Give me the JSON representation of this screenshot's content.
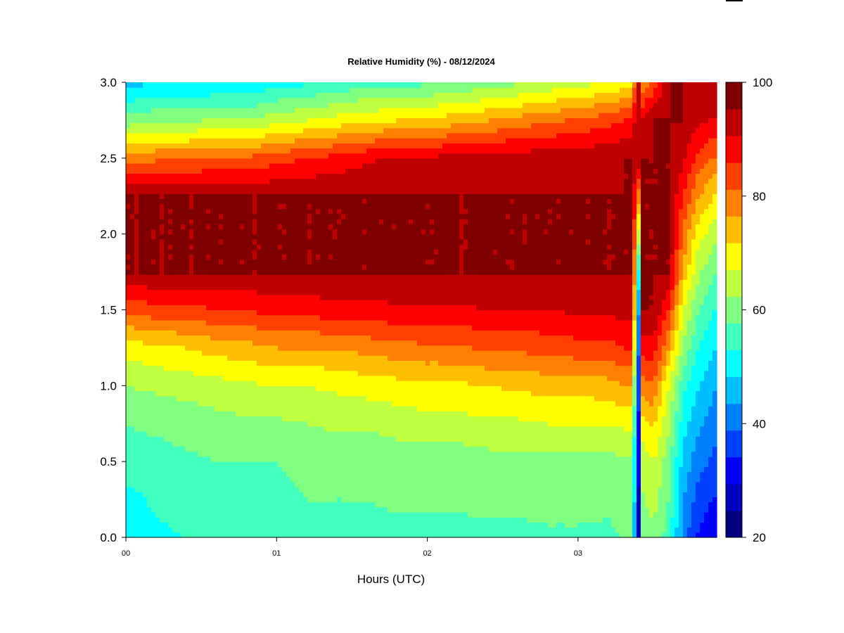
{
  "chart_data": {
    "type": "heatmap",
    "title": "Relative Humidity (%) - 08/12/2024",
    "xlabel": "Hours (UTC)",
    "ylabel": "",
    "x_ticks": [
      "00",
      "01",
      "02",
      "03"
    ],
    "x_tick_values": [
      0,
      1,
      2,
      3
    ],
    "xlim": [
      0,
      3.92
    ],
    "y_ticks": [
      "0.0",
      "0.5",
      "1.0",
      "1.5",
      "2.0",
      "2.5",
      "3.0"
    ],
    "y_tick_values": [
      0,
      0.5,
      1.0,
      1.5,
      2.0,
      2.5,
      3.0
    ],
    "ylim": [
      0,
      3.0
    ],
    "z_range": [
      20,
      100
    ],
    "z_step": 5,
    "colorbar_ticks": [
      "20",
      "40",
      "60",
      "80",
      "100"
    ],
    "colorbar_tick_values": [
      20,
      40,
      60,
      80,
      100
    ],
    "colorbar_colors": [
      "#00007f",
      "#0000bf",
      "#0000ff",
      "#0040ff",
      "#0080ff",
      "#00bfff",
      "#00ffff",
      "#40ffbf",
      "#80ff80",
      "#bfff40",
      "#ffff00",
      "#ffbf00",
      "#ff8000",
      "#ff4000",
      "#ff0000",
      "#bf0000",
      "#7f0000"
    ],
    "x": [
      0,
      0.2,
      0.4,
      0.6,
      0.8,
      1.0,
      1.2,
      1.4,
      1.6,
      1.8,
      2.0,
      2.2,
      2.4,
      2.6,
      2.8,
      3.0,
      3.2,
      3.3,
      3.36,
      3.4,
      3.42,
      3.44,
      3.5,
      3.6,
      3.7,
      3.8,
      3.92
    ],
    "y": [
      0,
      0.25,
      0.5,
      0.75,
      1.0,
      1.25,
      1.5,
      1.75,
      2.0,
      2.25,
      2.5,
      2.75,
      3.0
    ],
    "z": [
      [
        52,
        53,
        58,
        60,
        65,
        72,
        86,
        100,
        100,
        100,
        82,
        62,
        48
      ],
      [
        54,
        56,
        58,
        61,
        66,
        74,
        88,
        100,
        100,
        100,
        84,
        64,
        50
      ],
      [
        55,
        57,
        59,
        62,
        67,
        75,
        88,
        100,
        100,
        100,
        84,
        64,
        49
      ],
      [
        55,
        58,
        60,
        63,
        68,
        77,
        90,
        100,
        100,
        100,
        86,
        66,
        50
      ],
      [
        56,
        59,
        60,
        64,
        69,
        78,
        90,
        100,
        100,
        100,
        86,
        65,
        50
      ],
      [
        56,
        59,
        60,
        64,
        70,
        80,
        92,
        100,
        100,
        100,
        88,
        68,
        53
      ],
      [
        57,
        60,
        61,
        65,
        70,
        80,
        92,
        100,
        100,
        100,
        90,
        70,
        54
      ],
      [
        57,
        60,
        61,
        66,
        71,
        80,
        93,
        100,
        100,
        100,
        92,
        72,
        56
      ],
      [
        58,
        60,
        61,
        66,
        72,
        82,
        93,
        100,
        100,
        100,
        94,
        74,
        58
      ],
      [
        58,
        61,
        62,
        67,
        73,
        83,
        94,
        100,
        100,
        100,
        96,
        75,
        58
      ],
      [
        58,
        61,
        62,
        68,
        74,
        84,
        94,
        100,
        100,
        100,
        96,
        76,
        59
      ],
      [
        58,
        61,
        62,
        68,
        74,
        84,
        94,
        100,
        100,
        100,
        97,
        78,
        61
      ],
      [
        58,
        62,
        63,
        69,
        75,
        86,
        95,
        100,
        100,
        100,
        97,
        80,
        62
      ],
      [
        58,
        62,
        63,
        69,
        76,
        86,
        95,
        100,
        100,
        100,
        98,
        82,
        64
      ],
      [
        59,
        62,
        63,
        70,
        77,
        87,
        95,
        100,
        100,
        100,
        98,
        84,
        66
      ],
      [
        59,
        62,
        63,
        70,
        77,
        88,
        96,
        100,
        100,
        100,
        99,
        86,
        68
      ],
      [
        58,
        62,
        63,
        70,
        78,
        88,
        96,
        100,
        100,
        100,
        99,
        88,
        70
      ],
      [
        60,
        64,
        64,
        71,
        80,
        90,
        97,
        100,
        100,
        100,
        100,
        90,
        72
      ],
      [
        60,
        64,
        64,
        71,
        80,
        90,
        97,
        100,
        100,
        100,
        100,
        92,
        74
      ],
      [
        22,
        25,
        28,
        30,
        32,
        35,
        40,
        48,
        65,
        80,
        100,
        100,
        100
      ],
      [
        60,
        64,
        66,
        72,
        82,
        92,
        100,
        100,
        100,
        100,
        100,
        95,
        78
      ],
      [
        62,
        65,
        68,
        74,
        84,
        93,
        100,
        100,
        100,
        100,
        100,
        97,
        82
      ],
      [
        64,
        67,
        70,
        76,
        84,
        93,
        100,
        100,
        100,
        100,
        100,
        100,
        86
      ],
      [
        58,
        60,
        62,
        66,
        70,
        80,
        90,
        100,
        100,
        100,
        100,
        100,
        100
      ],
      [
        42,
        45,
        48,
        52,
        56,
        64,
        70,
        78,
        84,
        90,
        96,
        100,
        100
      ],
      [
        34,
        38,
        42,
        46,
        50,
        55,
        60,
        66,
        72,
        80,
        88,
        96,
        100
      ],
      [
        30,
        34,
        38,
        42,
        45,
        50,
        54,
        60,
        66,
        74,
        84,
        94,
        100
      ]
    ]
  }
}
